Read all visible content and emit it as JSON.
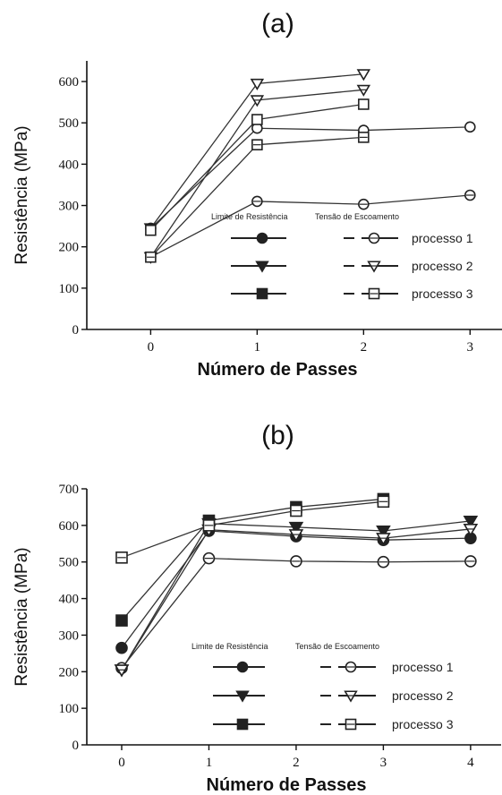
{
  "chart_data": [
    {
      "type": "line",
      "title": "(a)",
      "xlabel": "Número de Passes",
      "ylabel": "Resistência (MPa)",
      "xlim": [
        -0.6,
        3.3
      ],
      "ylim": [
        0,
        650
      ],
      "xticks": [
        0,
        1,
        2,
        3
      ],
      "yticks": [
        0,
        100,
        200,
        300,
        400,
        500,
        600
      ],
      "legend": {
        "header_left": "Limite de Resistência",
        "header_right": "Tensão de Escoamento",
        "entries": [
          "processo 1",
          "processo 2",
          "processo 3"
        ]
      },
      "series": [
        {
          "name": "Limite de Resistência processo 1",
          "marker": "circle",
          "filled": false,
          "x": [
            0,
            1,
            2,
            3
          ],
          "y": [
            245,
            487,
            482,
            490
          ]
        },
        {
          "name": "Limite de Resistência processo 2",
          "marker": "triangle",
          "filled": false,
          "x": [
            0,
            1,
            2
          ],
          "y": [
            245,
            595,
            618
          ]
        },
        {
          "name": "Limite de Resistência processo 3",
          "marker": "square",
          "filled": false,
          "x": [
            0,
            1,
            2
          ],
          "y": [
            240,
            508,
            545
          ]
        },
        {
          "name": "Tensão de Escoamento processo 1",
          "marker": "circle-cross",
          "filled": false,
          "x": [
            0,
            1,
            2,
            3
          ],
          "y": [
            175,
            310,
            303,
            325
          ]
        },
        {
          "name": "Tensão de Escoamento processo 2",
          "marker": "triangle-cross",
          "filled": false,
          "x": [
            0,
            1,
            2
          ],
          "y": [
            175,
            555,
            580
          ]
        },
        {
          "name": "Tensão de Escoamento processo 3",
          "marker": "square-cross",
          "filled": false,
          "x": [
            0,
            1,
            2
          ],
          "y": [
            175,
            447,
            465
          ]
        }
      ]
    },
    {
      "type": "line",
      "title": "(b)",
      "xlabel": "Número de Passes",
      "ylabel": "Resistência (MPa)",
      "xlim": [
        -0.4,
        4.35
      ],
      "ylim": [
        0,
        700
      ],
      "xticks": [
        0,
        1,
        2,
        3,
        4
      ],
      "yticks": [
        0,
        100,
        200,
        300,
        400,
        500,
        600,
        700
      ],
      "legend": {
        "header_left": "Limite de Resistência",
        "header_right": "Tensão de Escoamento",
        "entries": [
          "processo 1",
          "processo 2",
          "processo 3"
        ]
      },
      "series": [
        {
          "name": "Limite de Resistência processo 1",
          "marker": "circle",
          "filled": true,
          "x": [
            0,
            1,
            2,
            3,
            4
          ],
          "y": [
            265,
            585,
            570,
            560,
            565
          ]
        },
        {
          "name": "Limite de Resistência processo 2",
          "marker": "triangle",
          "filled": true,
          "x": [
            0,
            1,
            2,
            3,
            4
          ],
          "y": [
            205,
            605,
            595,
            585,
            612
          ]
        },
        {
          "name": "Limite de Resistência processo 3",
          "marker": "square",
          "filled": true,
          "x": [
            0,
            1,
            2,
            3
          ],
          "y": [
            340,
            613,
            650,
            672
          ]
        },
        {
          "name": "Tensão de Escoamento processo 1",
          "marker": "circle-cross",
          "filled": false,
          "x": [
            0,
            1,
            2,
            3,
            4
          ],
          "y": [
            210,
            510,
            502,
            500,
            502
          ]
        },
        {
          "name": "Tensão de Escoamento processo 2",
          "marker": "triangle-cross",
          "filled": false,
          "x": [
            0,
            1,
            2,
            3,
            4
          ],
          "y": [
            205,
            588,
            575,
            565,
            590
          ]
        },
        {
          "name": "Tensão de Escoamento processo 3",
          "marker": "square-cross",
          "filled": false,
          "x": [
            0,
            1,
            2,
            3
          ],
          "y": [
            512,
            600,
            640,
            665
          ]
        }
      ]
    }
  ]
}
